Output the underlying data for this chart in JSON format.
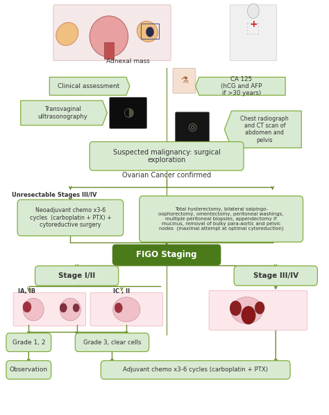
{
  "bg": "#ffffff",
  "lg": "#d9ead3",
  "mg": "#7fad3a",
  "dg": "#5a8a00",
  "dgfill": "#4a7a00",
  "tc": "#333333",
  "ac": "#6a8a2a",
  "lw": 1.0,
  "clinical": "Clinical assessment",
  "ca125": "CA 125\n(hCG and AFP\nif >30 years)",
  "transvag": "Transvaginal\nulltrasonography",
  "chest": "Chest radiograph\nand CT scan of\nabdomen and\npelvis",
  "suspected": "Suspected malignancy: surgical\nexploration",
  "confirmed": "Ovarian Cancer confirmed",
  "unresect": "Unresectable Stages III/IV",
  "neoadj": "Neoadjuvant chemo x3-6\ncycles  (carboplatin + PTX) +\ncytoreductive surgery",
  "total_hyst": "Total hysterectomy, bilateral salpingo-\noophorectomy, omentectomy, peritoneal washings,\nmultiple peritoneal biopsies, appendectomy if\nmucinus, removal of bulky para-aortic and pelvic\nnodes  (maximal attempt at optimal cytoreduction)",
  "figo": "FIGO Staging",
  "stage12": "Stage I/II",
  "stage34": "Stage III/IV",
  "ia_ib": "IA, IB",
  "ic_ii": "IC , II",
  "grade12": "Grade 1, 2",
  "grade3": "Grade 3, clear cells",
  "obs": "Observation",
  "adjuvant": "Adjuvant chemo x3-6 cycles (carboplatin + PTX)",
  "adnexal": "Adnexal mass"
}
